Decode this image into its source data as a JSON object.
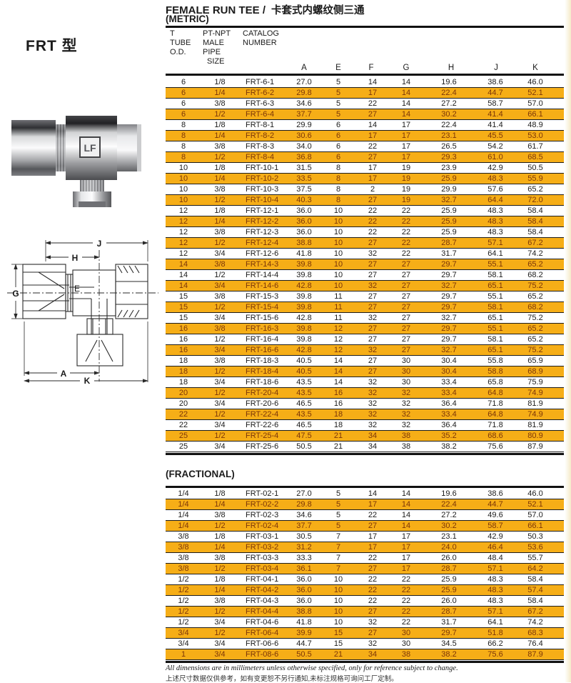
{
  "brand": {
    "logo": "LF"
  },
  "model_label": "FRT 型",
  "header": {
    "title_en": "FEMALE RUN TEE /",
    "title_zh": "卡套式内螺纹侧三通",
    "metric_label": "(METRIC)",
    "fractional_label": "(FRACTIONAL)"
  },
  "table": {
    "col_tube": [
      "T",
      "TUBE",
      "O.D."
    ],
    "col_pipe": [
      "PT-NPT",
      "MALE",
      "PIPE",
      "SIZE"
    ],
    "col_catalog": [
      "CATALOG",
      "NUMBER"
    ],
    "dim_headers": [
      "A",
      "E",
      "F",
      "G",
      "H",
      "J",
      "K"
    ]
  },
  "metric_rows": [
    [
      "6",
      "1/8",
      "FRT-6-1",
      "27.0",
      "5",
      "14",
      "14",
      "19.6",
      "38.6",
      "46.0"
    ],
    [
      "6",
      "1/4",
      "FRT-6-2",
      "29.8",
      "5",
      "17",
      "14",
      "22.4",
      "44.7",
      "52.1"
    ],
    [
      "6",
      "3/8",
      "FRT-6-3",
      "34.6",
      "5",
      "22",
      "14",
      "27.2",
      "58.7",
      "57.0"
    ],
    [
      "6",
      "1/2",
      "FRT-6-4",
      "37.7",
      "5",
      "27",
      "14",
      "30.2",
      "41.4",
      "66.1"
    ],
    [
      "8",
      "1/8",
      "FRT-8-1",
      "29.9",
      "6",
      "14",
      "17",
      "22.4",
      "41.4",
      "48.9"
    ],
    [
      "8",
      "1/4",
      "FRT-8-2",
      "30.6",
      "6",
      "17",
      "17",
      "23.1",
      "45.5",
      "53.0"
    ],
    [
      "8",
      "3/8",
      "FRT-8-3",
      "34.0",
      "6",
      "22",
      "17",
      "26.5",
      "54.2",
      "61.7"
    ],
    [
      "8",
      "1/2",
      "FRT-8-4",
      "36.8",
      "6",
      "27",
      "17",
      "29.3",
      "61.0",
      "68.5"
    ],
    [
      "10",
      "1/8",
      "FRT-10-1",
      "31.5",
      "8",
      "17",
      "19",
      "23.9",
      "42.9",
      "50.5"
    ],
    [
      "10",
      "1/4",
      "FRT-10-2",
      "33.5",
      "8",
      "17",
      "19",
      "25.9",
      "48.3",
      "55.9"
    ],
    [
      "10",
      "3/8",
      "FRT-10-3",
      "37.5",
      "8",
      "2",
      "19",
      "29.9",
      "57.6",
      "65.2"
    ],
    [
      "10",
      "1/2",
      "FRT-10-4",
      "40.3",
      "8",
      "27",
      "19",
      "32.7",
      "64.4",
      "72.0"
    ],
    [
      "12",
      "1/8",
      "FRT-12-1",
      "36.0",
      "10",
      "22",
      "22",
      "25.9",
      "48.3",
      "58.4"
    ],
    [
      "12",
      "1/4",
      "FRT-12-2",
      "36.0",
      "10",
      "22",
      "22",
      "25.9",
      "48.3",
      "58.4"
    ],
    [
      "12",
      "3/8",
      "FRT-12-3",
      "36.0",
      "10",
      "22",
      "22",
      "25.9",
      "48.3",
      "58.4"
    ],
    [
      "12",
      "1/2",
      "FRT-12-4",
      "38.8",
      "10",
      "27",
      "22",
      "28.7",
      "57.1",
      "67.2"
    ],
    [
      "12",
      "3/4",
      "FRT-12-6",
      "41.8",
      "10",
      "32",
      "22",
      "31.7",
      "64.1",
      "74.2"
    ],
    [
      "14",
      "3/8",
      "FRT-14-3",
      "39.8",
      "10",
      "27",
      "27",
      "29.7",
      "55.1",
      "65.2"
    ],
    [
      "14",
      "1/2",
      "FRT-14-4",
      "39.8",
      "10",
      "27",
      "27",
      "29.7",
      "58.1",
      "68.2"
    ],
    [
      "14",
      "3/4",
      "FRT-14-6",
      "42.8",
      "10",
      "32",
      "27",
      "32.7",
      "65.1",
      "75.2"
    ],
    [
      "15",
      "3/8",
      "FRT-15-3",
      "39.8",
      "11",
      "27",
      "27",
      "29.7",
      "55.1",
      "65.2"
    ],
    [
      "15",
      "1/2",
      "FRT-15-4",
      "39.8",
      "11",
      "27",
      "27",
      "29.7",
      "58.1",
      "68.2"
    ],
    [
      "15",
      "3/4",
      "FRT-15-6",
      "42.8",
      "11",
      "32",
      "27",
      "32.7",
      "65.1",
      "75.2"
    ],
    [
      "16",
      "3/8",
      "FRT-16-3",
      "39.8",
      "12",
      "27",
      "27",
      "29.7",
      "55.1",
      "65.2"
    ],
    [
      "16",
      "1/2",
      "FRT-16-4",
      "39.8",
      "12",
      "27",
      "27",
      "29.7",
      "58.1",
      "65.2"
    ],
    [
      "16",
      "3/4",
      "FRT-16-6",
      "42.8",
      "12",
      "32",
      "27",
      "32.7",
      "65.1",
      "75.2"
    ],
    [
      "18",
      "3/8",
      "FRT-18-3",
      "40.5",
      "14",
      "27",
      "30",
      "30.4",
      "55.8",
      "65.9"
    ],
    [
      "18",
      "1/2",
      "FRT-18-4",
      "40.5",
      "14",
      "27",
      "30",
      "30.4",
      "58.8",
      "68.9"
    ],
    [
      "18",
      "3/4",
      "FRT-18-6",
      "43.5",
      "14",
      "32",
      "30",
      "33.4",
      "65.8",
      "75.9"
    ],
    [
      "20",
      "1/2",
      "FRT-20-4",
      "43.5",
      "16",
      "32",
      "32",
      "33.4",
      "64.8",
      "74.9"
    ],
    [
      "20",
      "3/4",
      "FRT-20-6",
      "46.5",
      "16",
      "32",
      "32",
      "36.4",
      "71.8",
      "81.9"
    ],
    [
      "22",
      "1/2",
      "FRT-22-4",
      "43.5",
      "18",
      "32",
      "32",
      "33.4",
      "64.8",
      "74.9"
    ],
    [
      "22",
      "3/4",
      "FRT-22-6",
      "46.5",
      "18",
      "32",
      "32",
      "36.4",
      "71.8",
      "81.9"
    ],
    [
      "25",
      "1/2",
      "FRT-25-4",
      "47.5",
      "21",
      "34",
      "38",
      "35.2",
      "68.6",
      "80.9"
    ],
    [
      "25",
      "3/4",
      "FRT-25-6",
      "50.5",
      "21",
      "34",
      "38",
      "38.2",
      "75.6",
      "87.9"
    ]
  ],
  "fractional_rows": [
    [
      "1/4",
      "1/8",
      "FRT-02-1",
      "27.0",
      "5",
      "14",
      "14",
      "19.6",
      "38.6",
      "46.0"
    ],
    [
      "1/4",
      "1/4",
      "FRT-02-2",
      "29.8",
      "5",
      "17",
      "14",
      "22.4",
      "44.7",
      "52.1"
    ],
    [
      "1/4",
      "3/8",
      "FRT-02-3",
      "34.6",
      "5",
      "22",
      "14",
      "27.2",
      "49.6",
      "57.0"
    ],
    [
      "1/4",
      "1/2",
      "FRT-02-4",
      "37.7",
      "5",
      "27",
      "14",
      "30.2",
      "58.7",
      "66.1"
    ],
    [
      "3/8",
      "1/8",
      "FRT-03-1",
      "30.5",
      "7",
      "17",
      "17",
      "23.1",
      "42.9",
      "50.3"
    ],
    [
      "3/8",
      "1/4",
      "FRT-03-2",
      "31.2",
      "7",
      "17",
      "17",
      "24.0",
      "46.4",
      "53.6"
    ],
    [
      "3/8",
      "3/8",
      "FRT-03-3",
      "33.3",
      "7",
      "22",
      "17",
      "26.0",
      "48.4",
      "55.7"
    ],
    [
      "3/8",
      "1/2",
      "FRT-03-4",
      "36.1",
      "7",
      "27",
      "17",
      "28.7",
      "57.1",
      "64.2"
    ],
    [
      "1/2",
      "1/8",
      "FRT-04-1",
      "36.0",
      "10",
      "22",
      "22",
      "25.9",
      "48.3",
      "58.4"
    ],
    [
      "1/2",
      "1/4",
      "FRT-04-2",
      "36.0",
      "10",
      "22",
      "22",
      "25.9",
      "48.3",
      "57.4"
    ],
    [
      "1/2",
      "3/8",
      "FRT-04-3",
      "36.0",
      "10",
      "22",
      "22",
      "26.0",
      "48.3",
      "58.4"
    ],
    [
      "1/2",
      "1/2",
      "FRT-04-4",
      "38.8",
      "10",
      "27",
      "22",
      "28.7",
      "57.1",
      "67.2"
    ],
    [
      "1/2",
      "3/4",
      "FRT-04-6",
      "41.8",
      "10",
      "32",
      "22",
      "31.7",
      "64.1",
      "74.2"
    ],
    [
      "3/4",
      "1/2",
      "FRT-06-4",
      "39.9",
      "15",
      "27",
      "30",
      "29.7",
      "51.8",
      "68.3"
    ],
    [
      "3/4",
      "3/4",
      "FRT-06-6",
      "44.7",
      "15",
      "32",
      "30",
      "34.5",
      "66.2",
      "76.4"
    ],
    [
      "1",
      "3/4",
      "FRT-08-6",
      "50.5",
      "21",
      "34",
      "38",
      "38.2",
      "75.6",
      "87.9"
    ]
  ],
  "drawing": {
    "labels": {
      "j": "J",
      "h": "H",
      "g": "G",
      "e": "E",
      "a": "A",
      "k": "K"
    }
  },
  "footnotes": {
    "en": "All dimensions are in millimeters unless otherwise specified, only for reference subject to change.",
    "zh": "上述尺寸数据仅供参考，如有变更恕不另行通知,未标注规格可询问工厂定制。"
  },
  "colors": {
    "highlight": "#F6AE17",
    "highlight_text": "#7C3508",
    "text": "#1b1b1b"
  }
}
